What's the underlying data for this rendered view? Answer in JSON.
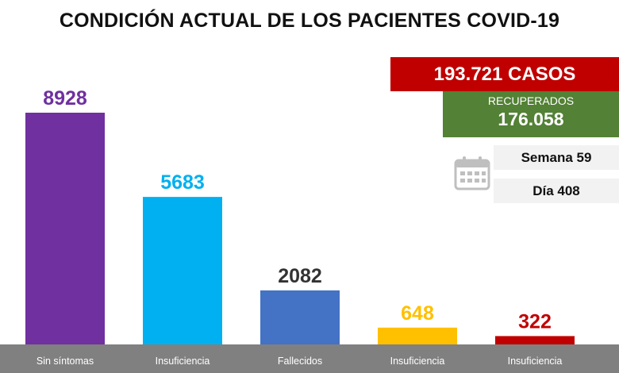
{
  "header": {
    "title": "CONDICIÓN ACTUAL DE LOS PACIENTES COVID-19"
  },
  "summary": {
    "cases_label": "193.721 CASOS",
    "recovered_label": "RECUPERADOS",
    "recovered_value": "176.058",
    "week": "Semana 59",
    "day": "Día 408"
  },
  "icons": {
    "calendar": "calendar-icon"
  },
  "chart_data": {
    "type": "bar",
    "title": "CONDICIÓN ACTUAL DE LOS PACIENTES COVID-19",
    "categories": [
      "Sin síntomas",
      "Insuficiencia",
      "Fallecidos",
      "Insuficiencia",
      "Insuficiencia"
    ],
    "values": [
      8928,
      5683,
      2082,
      648,
      322
    ],
    "colors": [
      "#7030a0",
      "#00b0f0",
      "#4472c4",
      "#ffc000",
      "#c00000"
    ],
    "ylim": [
      0,
      9500
    ],
    "grid": false,
    "legend": "none"
  }
}
